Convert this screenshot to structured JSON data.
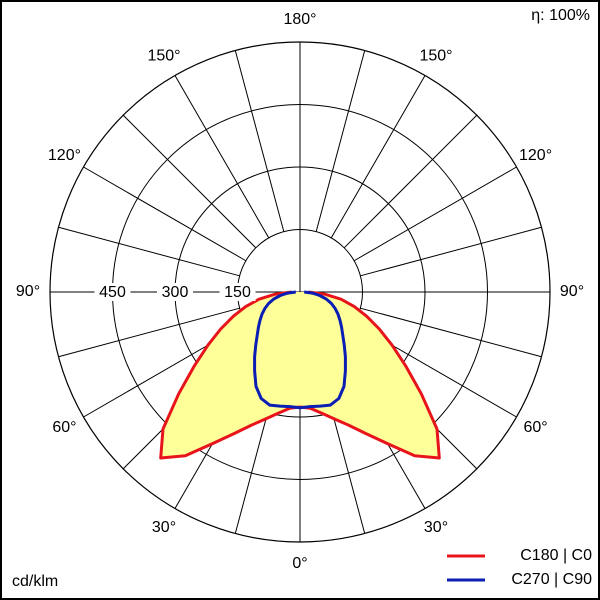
{
  "chart_data": {
    "type": "polar",
    "efficiency_label": "η: 100%",
    "unit_label": "cd/klm",
    "rlim": [
      0,
      600
    ],
    "rticks": [
      150,
      300,
      450
    ],
    "angle_ticks": [
      {
        "value": 0,
        "label": "0°"
      },
      {
        "value": 30,
        "label": "30°"
      },
      {
        "value": 60,
        "label": "60°"
      },
      {
        "value": 90,
        "label": "90°"
      },
      {
        "value": 120,
        "label": "120°"
      },
      {
        "value": 150,
        "label": "150°"
      },
      {
        "value": 180,
        "label": "180°"
      }
    ],
    "angles": [
      0,
      5,
      10,
      15,
      20,
      25,
      30,
      35,
      40,
      45,
      50,
      55,
      60,
      65,
      70,
      75,
      80,
      85,
      90
    ],
    "series": [
      {
        "name": "C180 | C0",
        "color": "#e8141b",
        "fill": "#ffff99",
        "values": [
          276,
          280,
          295,
          315,
          340,
          375,
          420,
          480,
          520,
          465,
          380,
          310,
          255,
          210,
          170,
          135,
          100,
          60,
          20
        ]
      },
      {
        "name": "C270 | C90",
        "color": "#0a1eb4",
        "values": [
          278,
          276,
          278,
          281,
          272,
          250,
          218,
          190,
          165,
          145,
          130,
          117,
          105,
          93,
          80,
          65,
          48,
          30,
          10
        ]
      }
    ]
  }
}
